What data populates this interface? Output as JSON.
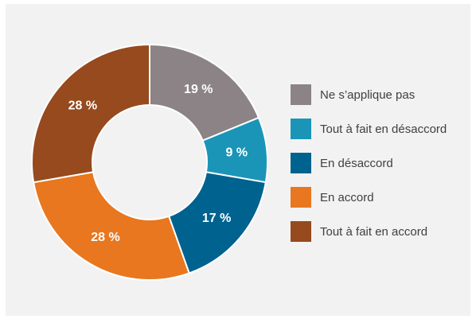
{
  "chart_data": {
    "type": "donut",
    "categories": [
      "Ne s’applique pas",
      "Tout à fait en désaccord",
      "En désaccord",
      "En accord",
      "Tout à fait en accord"
    ],
    "values": [
      19,
      9,
      17,
      28,
      28
    ],
    "value_labels": [
      "19 %",
      "9 %",
      "17 %",
      "28 %",
      "28 %"
    ],
    "colors": [
      "#8b8385",
      "#1a95b8",
      "#00628f",
      "#e8771f",
      "#964a1e"
    ],
    "legend": "right"
  }
}
